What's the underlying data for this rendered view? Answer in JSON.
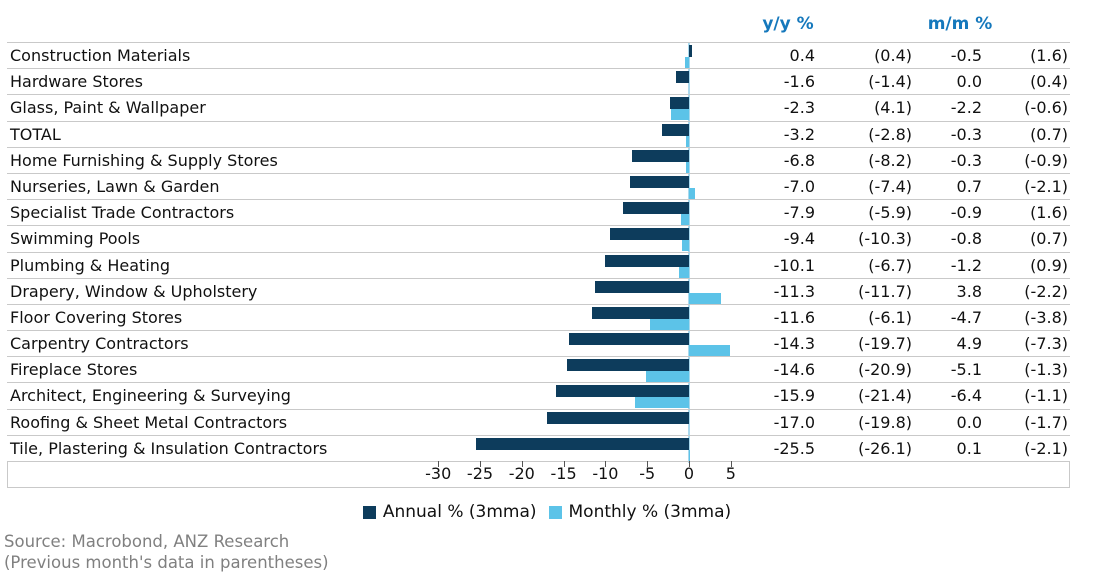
{
  "columns": {
    "yy_header": "y/y %",
    "mm_header": "m/m %"
  },
  "source": {
    "line1": "Source: Macrobond, ANZ Research",
    "line2": "(Previous month's data in parentheses)"
  },
  "colors": {
    "annual_bar": "#0d3c5c",
    "monthly_bar": "#5cc3e8",
    "header_blue": "#1578bc",
    "grid_line": "#c9c9c9",
    "zero_line": "#a9d9ee",
    "source_gray": "#808080"
  },
  "chart_data": {
    "type": "bar",
    "orientation": "horizontal",
    "title": "",
    "xlabel": "",
    "ylabel": "",
    "xlim": [
      -36,
      9
    ],
    "grid": "row-separators",
    "legend_position": "bottom-center",
    "x_axis": {
      "ticks": [
        -30,
        -25,
        -20,
        -15,
        -10,
        -5,
        0,
        5
      ]
    },
    "series": [
      {
        "name": "Annual % (3mma)",
        "color": "#0d3c5c"
      },
      {
        "name": "Monthly % (3mma)",
        "color": "#5cc3e8"
      }
    ],
    "rows": [
      {
        "label": "Construction Materials",
        "annual": 0.4,
        "annual_prev": "(0.4)",
        "monthly": -0.5,
        "monthly_prev": "(1.6)"
      },
      {
        "label": "Hardware Stores",
        "annual": -1.6,
        "annual_prev": "(-1.4)",
        "monthly": 0.0,
        "monthly_prev": "(0.4)"
      },
      {
        "label": "Glass, Paint & Wallpaper",
        "annual": -2.3,
        "annual_prev": "(4.1)",
        "monthly": -2.2,
        "monthly_prev": "(-0.6)"
      },
      {
        "label": "TOTAL",
        "annual": -3.2,
        "annual_prev": "(-2.8)",
        "monthly": -0.3,
        "monthly_prev": "(0.7)"
      },
      {
        "label": "Home Furnishing & Supply Stores",
        "annual": -6.8,
        "annual_prev": "(-8.2)",
        "monthly": -0.3,
        "monthly_prev": "(-0.9)"
      },
      {
        "label": "Nurseries, Lawn & Garden",
        "annual": -7.0,
        "annual_prev": "(-7.4)",
        "monthly": 0.7,
        "monthly_prev": "(-2.1)"
      },
      {
        "label": "Specialist Trade Contractors",
        "annual": -7.9,
        "annual_prev": "(-5.9)",
        "monthly": -0.9,
        "monthly_prev": "(1.6)"
      },
      {
        "label": "Swimming Pools",
        "annual": -9.4,
        "annual_prev": "(-10.3)",
        "monthly": -0.8,
        "monthly_prev": "(0.7)"
      },
      {
        "label": "Plumbing & Heating",
        "annual": -10.1,
        "annual_prev": "(-6.7)",
        "monthly": -1.2,
        "monthly_prev": "(0.9)"
      },
      {
        "label": "Drapery, Window & Upholstery",
        "annual": -11.3,
        "annual_prev": "(-11.7)",
        "monthly": 3.8,
        "monthly_prev": "(-2.2)"
      },
      {
        "label": "Floor Covering Stores",
        "annual": -11.6,
        "annual_prev": "(-6.1)",
        "monthly": -4.7,
        "monthly_prev": "(-3.8)"
      },
      {
        "label": "Carpentry Contractors",
        "annual": -14.3,
        "annual_prev": "(-19.7)",
        "monthly": 4.9,
        "monthly_prev": "(-7.3)"
      },
      {
        "label": "Fireplace Stores",
        "annual": -14.6,
        "annual_prev": "(-20.9)",
        "monthly": -5.1,
        "monthly_prev": "(-1.3)"
      },
      {
        "label": "Architect, Engineering & Surveying",
        "annual": -15.9,
        "annual_prev": "(-21.4)",
        "monthly": -6.4,
        "monthly_prev": "(-1.1)"
      },
      {
        "label": "Roofing & Sheet Metal Contractors",
        "annual": -17.0,
        "annual_prev": "(-19.8)",
        "monthly": 0.0,
        "monthly_prev": "(-1.7)"
      },
      {
        "label": "Tile, Plastering & Insulation Contractors",
        "annual": -25.5,
        "annual_prev": "(-26.1)",
        "monthly": 0.1,
        "monthly_prev": "(-2.1)"
      }
    ]
  }
}
